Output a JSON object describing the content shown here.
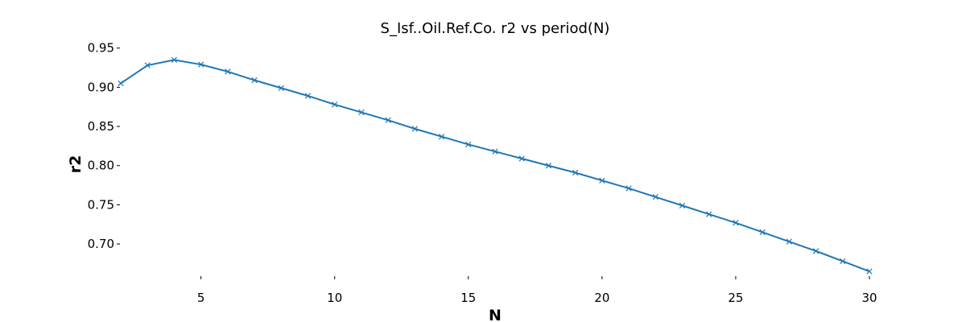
{
  "chart_data": {
    "type": "line",
    "title": "S_Isf..Oil.Ref.Co. r2 vs period(N)",
    "xlabel": "N",
    "ylabel": "r2",
    "xlim": [
      2,
      30
    ],
    "ylim": [
      0.66,
      0.96
    ],
    "xticks": [
      5,
      10,
      15,
      20,
      25,
      30
    ],
    "xtick_labels": [
      "5",
      "10",
      "15",
      "20",
      "25",
      "30"
    ],
    "yticks": [
      0.7,
      0.75,
      0.8,
      0.85,
      0.9,
      0.95
    ],
    "ytick_labels": [
      "0.70",
      "0.75",
      "0.80",
      "0.85",
      "0.90",
      "0.95"
    ],
    "grid": false,
    "marker": "x",
    "color": "#1f77b4",
    "series": [
      {
        "x": [
          2,
          3,
          4,
          5,
          6,
          7,
          8,
          9,
          10,
          11,
          12,
          13,
          14,
          15,
          16,
          17,
          18,
          19,
          20,
          21,
          22,
          23,
          24,
          25,
          26,
          27,
          28,
          29,
          30
        ],
        "values": [
          0.905,
          0.928,
          0.935,
          0.929,
          0.92,
          0.909,
          0.899,
          0.889,
          0.878,
          0.868,
          0.858,
          0.847,
          0.837,
          0.827,
          0.818,
          0.809,
          0.8,
          0.791,
          0.781,
          0.771,
          0.76,
          0.749,
          0.738,
          0.727,
          0.715,
          0.703,
          0.691,
          0.678,
          0.665
        ]
      }
    ]
  }
}
